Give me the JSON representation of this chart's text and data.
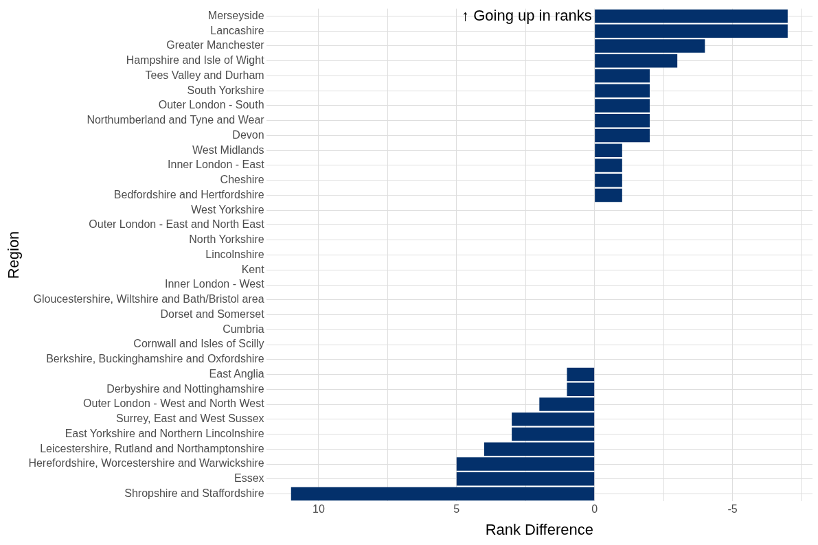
{
  "chart_data": {
    "type": "bar",
    "orientation": "horizontal",
    "xlabel": "Rank Difference",
    "ylabel": "Region",
    "categories": [
      "Merseyside",
      "Lancashire",
      "Greater Manchester",
      "Hampshire and Isle of Wight",
      "Tees Valley and Durham",
      "South Yorkshire",
      "Outer London - South",
      "Northumberland and Tyne and Wear",
      "Devon",
      "West Midlands",
      "Inner London - East",
      "Cheshire",
      "Bedfordshire and Hertfordshire",
      "West Yorkshire",
      "Outer London - East and North East",
      "North Yorkshire",
      "Lincolnshire",
      "Kent",
      "Inner London - West",
      "Gloucestershire, Wiltshire and Bath/Bristol area",
      "Dorset and Somerset",
      "Cumbria",
      "Cornwall and Isles of Scilly",
      "Berkshire, Buckinghamshire and Oxfordshire",
      "East Anglia",
      "Derbyshire and Nottinghamshire",
      "Outer London - West and North West",
      "Surrey, East and West Sussex",
      "East Yorkshire and Northern Lincolnshire",
      "Leicestershire, Rutland and Northamptonshire",
      "Herefordshire, Worcestershire and Warwickshire",
      "Essex",
      "Shropshire and Staffordshire"
    ],
    "values": [
      -7,
      -7,
      -4,
      -3,
      -2,
      -2,
      -2,
      -2,
      -2,
      -1,
      -1,
      -1,
      -1,
      0,
      0,
      0,
      0,
      0,
      0,
      0,
      0,
      0,
      0,
      0,
      1,
      1,
      2,
      3,
      3,
      4,
      5,
      5,
      11
    ],
    "color": "#03306b",
    "xlim": [
      11.9,
      -7.9
    ],
    "xticks": [
      10,
      {
        "value": 7.5,
        "label": null
      },
      5,
      {
        "value": 2.5,
        "label": null
      },
      0,
      {
        "value": -2.5,
        "label": null
      },
      -5,
      {
        "value": -7.5,
        "label": null
      }
    ],
    "grid": true,
    "annotations": [
      {
        "text": "↑ Going up in ranks",
        "x": 0,
        "y": "Merseyside"
      }
    ]
  }
}
